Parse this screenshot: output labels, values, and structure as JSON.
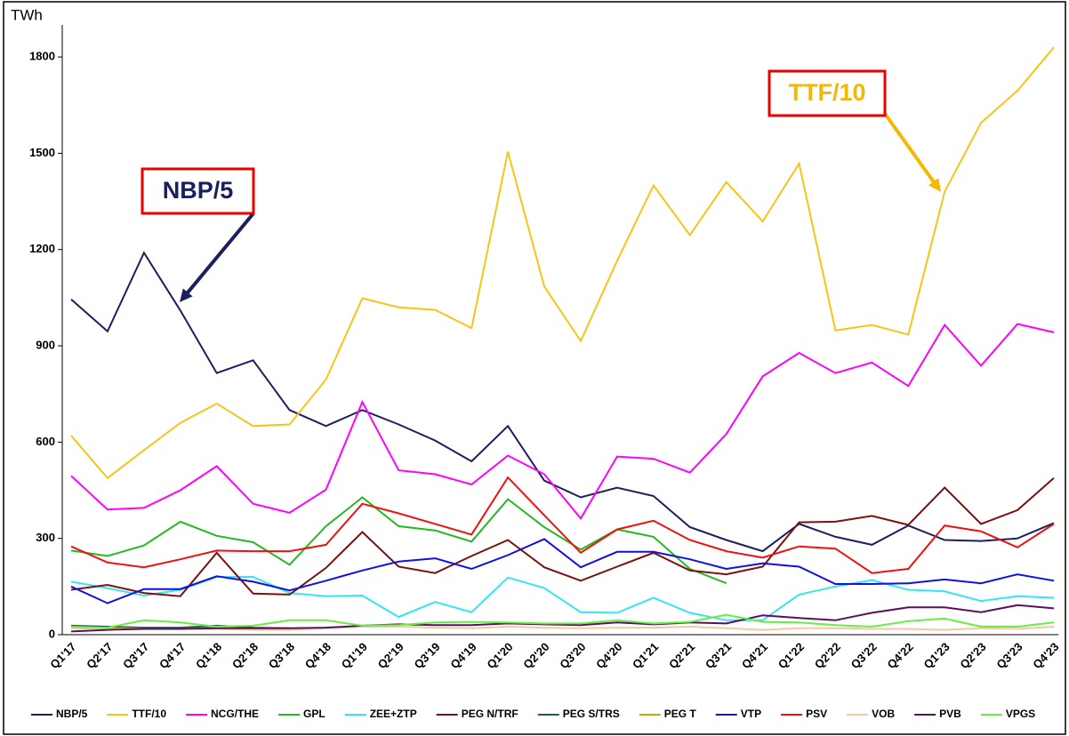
{
  "chart_data": {
    "type": "line",
    "y_axis_label": "TWh",
    "categories": [
      "Q1'17",
      "Q2'17",
      "Q3'17",
      "Q4'17",
      "Q1'18",
      "Q2'18",
      "Q3'18",
      "Q4'18",
      "Q1'19",
      "Q2'19",
      "Q3'19",
      "Q4'19",
      "Q1'20",
      "Q2'20",
      "Q3'20",
      "Q4'20",
      "Q1'21",
      "Q2'21",
      "Q3'21",
      "Q4'21",
      "Q1'22",
      "Q2'22",
      "Q3'22",
      "Q4'22",
      "Q1'23",
      "Q2'23",
      "Q3'23",
      "Q4'23"
    ],
    "ylim": [
      0,
      1900
    ],
    "yticks": [
      0,
      300,
      600,
      900,
      1200,
      1500,
      1800
    ],
    "grid": false,
    "legend": "bottom",
    "annotations": [
      {
        "text": "NBP/5",
        "color": "#1a1f5e"
      },
      {
        "text": "TTF/10",
        "color": "#f5b800"
      }
    ],
    "series": [
      {
        "name": "NBP/5",
        "color": "#1a1f5e",
        "values": [
          1045,
          945,
          1190,
          1010,
          815,
          855,
          700,
          650,
          700,
          655,
          605,
          540,
          650,
          480,
          428,
          458,
          432,
          335,
          295,
          260,
          345,
          305,
          280,
          340,
          295,
          292,
          300,
          348
        ]
      },
      {
        "name": "TTF/10",
        "color": "#f5c518",
        "values": [
          620,
          488,
          575,
          660,
          720,
          650,
          655,
          795,
          1048,
          1020,
          1012,
          955,
          1505,
          1085,
          915,
          1165,
          1400,
          1245,
          1410,
          1288,
          1468,
          948,
          965,
          935,
          1380,
          1595,
          1695,
          1830
        ]
      },
      {
        "name": "NCG/THE",
        "color": "#ff00ff",
        "values": [
          495,
          390,
          395,
          450,
          525,
          408,
          380,
          452,
          725,
          512,
          500,
          468,
          558,
          500,
          362,
          555,
          548,
          505,
          625,
          805,
          878,
          815,
          848,
          775,
          965,
          838,
          968,
          942
        ]
      },
      {
        "name": "GPL",
        "color": "#22bb22",
        "values": [
          262,
          245,
          278,
          352,
          308,
          288,
          218,
          338,
          428,
          338,
          325,
          290,
          422,
          335,
          265,
          328,
          305,
          205,
          160,
          null,
          null,
          null,
          null,
          null,
          null,
          null,
          null,
          null
        ]
      },
      {
        "name": "ZEE+ZTP",
        "color": "#33e6f0",
        "values": [
          165,
          145,
          122,
          140,
          180,
          180,
          130,
          120,
          122,
          55,
          102,
          70,
          178,
          145,
          70,
          68,
          115,
          68,
          45,
          45,
          125,
          150,
          170,
          140,
          135,
          105,
          120,
          115
        ]
      },
      {
        "name": "PEG N/TRF",
        "color": "#7b1010",
        "values": [
          140,
          155,
          130,
          120,
          255,
          128,
          125,
          208,
          320,
          212,
          192,
          245,
          295,
          210,
          168,
          212,
          255,
          200,
          188,
          212,
          350,
          352,
          370,
          342,
          458,
          345,
          388,
          488
        ]
      },
      {
        "name": "PEG S/TRS",
        "color": "#1c5c5c",
        "values": [
          28,
          25,
          22,
          22,
          28,
          22,
          20,
          null,
          null,
          null,
          null,
          null,
          null,
          null,
          null,
          null,
          null,
          null,
          null,
          null,
          null,
          null,
          null,
          null,
          null,
          null,
          null,
          null
        ]
      },
      {
        "name": "PEG T",
        "color": "#b5b500",
        "values": [
          22,
          20,
          18,
          18,
          22,
          18,
          15,
          null,
          null,
          null,
          null,
          null,
          null,
          null,
          null,
          null,
          null,
          null,
          null,
          null,
          null,
          null,
          null,
          null,
          null,
          null,
          null,
          null
        ]
      },
      {
        "name": "VTP",
        "color": "#1010e0",
        "values": [
          150,
          98,
          142,
          142,
          182,
          165,
          138,
          168,
          200,
          228,
          238,
          205,
          248,
          298,
          210,
          258,
          258,
          235,
          205,
          222,
          212,
          158,
          158,
          160,
          172,
          160,
          188,
          168
        ]
      },
      {
        "name": "PSV",
        "color": "#ee1111",
        "values": [
          275,
          225,
          210,
          235,
          262,
          260,
          260,
          280,
          408,
          378,
          345,
          312,
          490,
          372,
          255,
          328,
          355,
          295,
          260,
          240,
          275,
          268,
          192,
          205,
          340,
          322,
          272,
          345
        ]
      },
      {
        "name": "VOB",
        "color": "#f5c8a0",
        "values": [
          20,
          18,
          18,
          18,
          18,
          15,
          15,
          20,
          25,
          25,
          22,
          20,
          25,
          22,
          20,
          22,
          22,
          25,
          20,
          15,
          20,
          20,
          18,
          18,
          15,
          20,
          18,
          25
        ]
      },
      {
        "name": "PVB",
        "color": "#5a1060",
        "values": [
          10,
          15,
          18,
          18,
          20,
          20,
          20,
          22,
          28,
          32,
          30,
          30,
          35,
          32,
          30,
          38,
          32,
          38,
          35,
          60,
          52,
          45,
          68,
          85,
          85,
          70,
          92,
          82
        ]
      },
      {
        "name": "VPGS",
        "color": "#66ee44",
        "values": [
          25,
          22,
          45,
          38,
          25,
          28,
          45,
          45,
          28,
          30,
          38,
          40,
          38,
          35,
          35,
          45,
          35,
          40,
          62,
          40,
          38,
          30,
          25,
          42,
          50,
          25,
          25,
          38
        ]
      }
    ]
  }
}
